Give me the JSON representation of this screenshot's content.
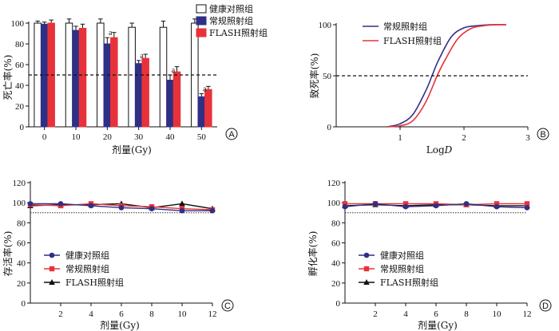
{
  "colors": {
    "control": "#ffffff",
    "conventional": "#2f2f86",
    "flash": "#e8323a",
    "black": "#111111"
  },
  "chart_data": [
    {
      "panel": "A",
      "type": "bar",
      "xlabel": "剂量(Gy)",
      "ylabel": "死亡率(%)",
      "ylim": [
        0,
        100
      ],
      "yticks": [
        0,
        20,
        40,
        60,
        80,
        100
      ],
      "categories": [
        "0",
        "10",
        "20",
        "30",
        "40",
        "50"
      ],
      "reference_line": 50,
      "series": [
        {
          "name": "健康对照组",
          "values": [
            100,
            100,
            100,
            96,
            96,
            100
          ],
          "errors": [
            2,
            4,
            4,
            4,
            6,
            4
          ]
        },
        {
          "name": "常规照射组",
          "values": [
            99,
            93,
            80,
            61,
            45,
            29
          ],
          "errors": [
            2,
            4,
            6,
            3,
            5,
            3
          ]
        },
        {
          "name": "FLASH照射组",
          "values": [
            100,
            95,
            86,
            66,
            53,
            36
          ],
          "errors": [
            3,
            4,
            5,
            4,
            5,
            3
          ]
        }
      ],
      "annotations": [
        {
          "text": "a",
          "category": "20"
        },
        {
          "text": "a",
          "category": "30"
        },
        {
          "text": "a",
          "category": "40"
        },
        {
          "text": "a",
          "category": "50"
        }
      ]
    },
    {
      "panel": "B",
      "type": "line",
      "xlabel_prefix": "Log",
      "xlabel_var": "D",
      "ylabel": "致死率(%)",
      "xlim": [
        0,
        3
      ],
      "ylim": [
        0,
        100
      ],
      "xticks": [
        1,
        2,
        3
      ],
      "yticks": [
        0,
        50,
        100
      ],
      "reference_line": 50,
      "series": [
        {
          "name": "常规照射组",
          "x": [
            0.8,
            1.0,
            1.2,
            1.4,
            1.5,
            1.6,
            1.8,
            2.0,
            2.2,
            2.4,
            2.66
          ],
          "values": [
            0,
            3,
            12,
            35,
            50,
            65,
            88,
            97,
            99,
            100,
            100
          ]
        },
        {
          "name": "FLASH照射组",
          "x": [
            0.8,
            1.0,
            1.2,
            1.4,
            1.58,
            1.7,
            1.9,
            2.1,
            2.3,
            2.5,
            2.66
          ],
          "values": [
            0,
            1,
            6,
            24,
            50,
            65,
            86,
            96,
            99,
            100,
            100
          ]
        }
      ]
    },
    {
      "panel": "C",
      "type": "line",
      "xlabel": "剂量(Gy)",
      "ylabel": "存活率(%)",
      "xlim": [
        0,
        12
      ],
      "ylim": [
        0,
        120
      ],
      "xticks": [
        2,
        4,
        6,
        8,
        10,
        12
      ],
      "yticks": [
        0,
        20,
        40,
        60,
        80,
        100,
        120
      ],
      "reference_line": 90,
      "x": [
        0,
        2,
        4,
        6,
        8,
        10,
        12
      ],
      "series": [
        {
          "name": "健康对照组",
          "values": [
            99,
            99,
            97,
            95,
            94,
            92,
            92
          ]
        },
        {
          "name": "常规照射组",
          "values": [
            98,
            97,
            99,
            97,
            96,
            94,
            93
          ]
        },
        {
          "name": "FLASH照射组",
          "values": [
            97,
            98,
            98,
            99,
            95,
            99,
            94
          ]
        }
      ]
    },
    {
      "panel": "D",
      "type": "line",
      "xlabel": "剂量(Gy)",
      "ylabel": "孵化率(%)",
      "xlim": [
        0,
        12
      ],
      "ylim": [
        0,
        120
      ],
      "xticks": [
        2,
        4,
        6,
        8,
        10,
        12
      ],
      "yticks": [
        0,
        20,
        40,
        60,
        80,
        100,
        120
      ],
      "reference_line": 90,
      "x": [
        0,
        2,
        4,
        6,
        8,
        10,
        12
      ],
      "series": [
        {
          "name": "健康对照组",
          "values": [
            96,
            99,
            96,
            97,
            99,
            96,
            95
          ]
        },
        {
          "name": "常规照射组",
          "values": [
            99,
            99,
            99,
            99,
            98,
            99,
            99
          ]
        },
        {
          "name": "FLASH照射组",
          "values": [
            97,
            98,
            97,
            98,
            98,
            97,
            97
          ]
        }
      ]
    }
  ]
}
